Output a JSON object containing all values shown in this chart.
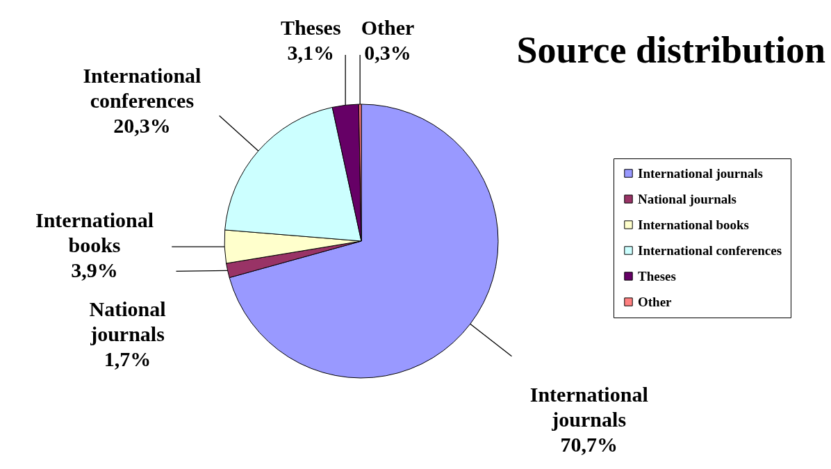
{
  "chart_data": {
    "type": "pie",
    "title": "Source distribution",
    "categories": [
      "International journals",
      "National journals",
      "International books",
      "International conferences",
      "Theses",
      "Other"
    ],
    "values": [
      70.7,
      1.7,
      3.9,
      20.3,
      3.1,
      0.3
    ],
    "colors": [
      "#9999ff",
      "#993366",
      "#ffffcc",
      "#ccffff",
      "#660066",
      "#ff8080"
    ],
    "value_labels": [
      "70,7%",
      "1,7%",
      "3,9%",
      "20,3%",
      "3,1%",
      "0,3%"
    ],
    "legend": "right"
  }
}
